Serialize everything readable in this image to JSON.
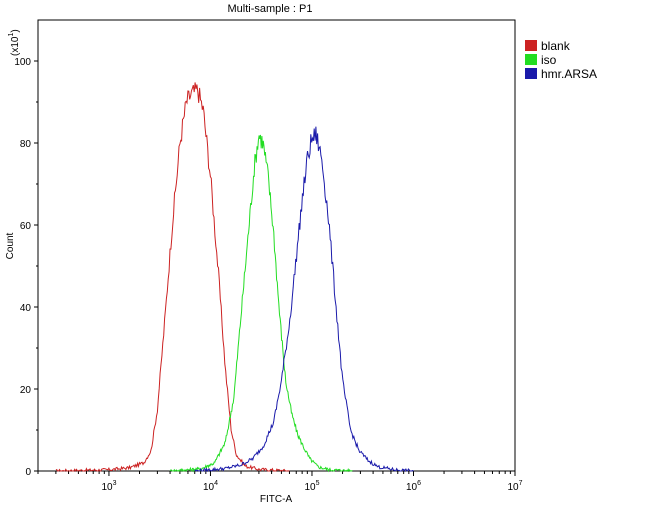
{
  "chart_data": {
    "type": "line",
    "title": "Multi-sample : P1",
    "xlabel": "FITC-A",
    "ylabel": "Count",
    "y_multiplier": "(x10",
    "y_multiplier_exp": "1",
    "x_scale": "log",
    "xlim": [
      200,
      10000000
    ],
    "ylim": [
      0,
      110
    ],
    "grid": false,
    "legend_position": "top-right",
    "x_ticks": [
      {
        "value": 1000,
        "base": "10",
        "exp": "3"
      },
      {
        "value": 10000,
        "base": "10",
        "exp": "4"
      },
      {
        "value": 100000,
        "base": "10",
        "exp": "5"
      },
      {
        "value": 1000000,
        "base": "10",
        "exp": "6"
      },
      {
        "value": 10000000,
        "base": "10",
        "exp": "7"
      }
    ],
    "y_ticks": [
      "0",
      "20",
      "40",
      "60",
      "80",
      "100"
    ],
    "series": [
      {
        "name": "blank",
        "color": "#cc2222",
        "points": [
          [
            300,
            0
          ],
          [
            1000,
            0.3
          ],
          [
            1600,
            0.8
          ],
          [
            2200,
            2
          ],
          [
            2600,
            5
          ],
          [
            3000,
            15
          ],
          [
            3500,
            35
          ],
          [
            4200,
            60
          ],
          [
            5000,
            80
          ],
          [
            5800,
            90
          ],
          [
            6500,
            92
          ],
          [
            7500,
            93
          ],
          [
            8500,
            88
          ],
          [
            10000,
            72
          ],
          [
            12000,
            48
          ],
          [
            14000,
            25
          ],
          [
            16000,
            10
          ],
          [
            18000,
            4
          ],
          [
            22000,
            1.2
          ],
          [
            30000,
            0.4
          ],
          [
            60000,
            0
          ]
        ]
      },
      {
        "name": "iso",
        "color": "#22dd22",
        "points": [
          [
            4000,
            0
          ],
          [
            8000,
            0.5
          ],
          [
            11000,
            2
          ],
          [
            14000,
            7
          ],
          [
            17000,
            18
          ],
          [
            20000,
            38
          ],
          [
            24000,
            60
          ],
          [
            27000,
            74
          ],
          [
            30000,
            82
          ],
          [
            33000,
            80
          ],
          [
            37000,
            72
          ],
          [
            42000,
            58
          ],
          [
            48000,
            38
          ],
          [
            55000,
            22
          ],
          [
            63000,
            14
          ],
          [
            72000,
            9
          ],
          [
            82000,
            6
          ],
          [
            95000,
            3
          ],
          [
            115000,
            1
          ],
          [
            150000,
            0.3
          ],
          [
            250000,
            0
          ]
        ]
      },
      {
        "name": "hmr.ARSA",
        "color": "#1a1aaa",
        "points": [
          [
            7000,
            0
          ],
          [
            14000,
            0.6
          ],
          [
            20000,
            1.5
          ],
          [
            26000,
            3
          ],
          [
            33000,
            6
          ],
          [
            42000,
            12
          ],
          [
            50000,
            22
          ],
          [
            60000,
            36
          ],
          [
            70000,
            52
          ],
          [
            80000,
            66
          ],
          [
            90000,
            76
          ],
          [
            100000,
            81
          ],
          [
            110000,
            82
          ],
          [
            125000,
            76
          ],
          [
            145000,
            62
          ],
          [
            170000,
            42
          ],
          [
            200000,
            22
          ],
          [
            240000,
            10
          ],
          [
            290000,
            5
          ],
          [
            360000,
            2.5
          ],
          [
            450000,
            1
          ],
          [
            650000,
            0.3
          ],
          [
            1000000,
            0
          ]
        ]
      }
    ]
  }
}
